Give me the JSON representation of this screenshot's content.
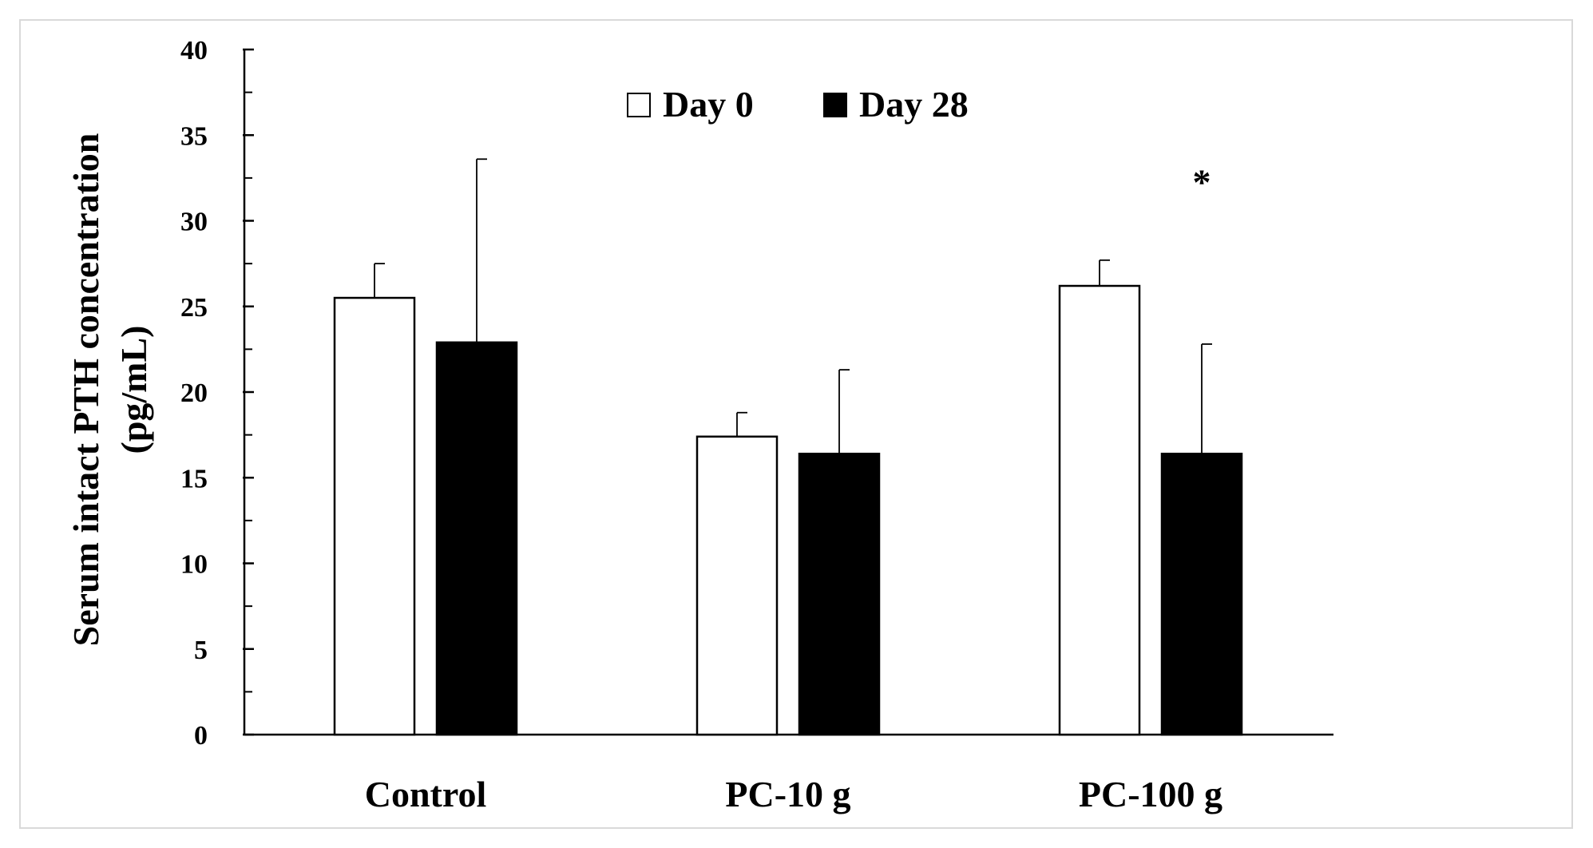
{
  "chart_data": {
    "type": "bar",
    "title": "",
    "xlabel": "",
    "ylabel_lines": [
      "Serum intact PTH concentration",
      "(pg/mL)"
    ],
    "ylim": [
      0,
      40
    ],
    "yticks": [
      0,
      5,
      10,
      15,
      20,
      25,
      30,
      35,
      40
    ],
    "categories": [
      "Control",
      "PC-10 g",
      "PC-100 g"
    ],
    "series": [
      {
        "name": "Day 0",
        "values": [
          25.5,
          17.4,
          26.2
        ],
        "errors": [
          2.0,
          1.4,
          1.5
        ],
        "fill": "#ffffff",
        "stroke": "#000000"
      },
      {
        "name": "Day 28",
        "values": [
          22.9,
          16.4,
          16.4
        ],
        "errors": [
          10.7,
          4.9,
          6.4
        ],
        "fill": "#000000",
        "stroke": "#000000"
      }
    ],
    "annotations": [
      {
        "text": "*",
        "category_index": 2,
        "series_index": 1,
        "y": 32
      }
    ],
    "legend": {
      "position": "top-center"
    }
  }
}
